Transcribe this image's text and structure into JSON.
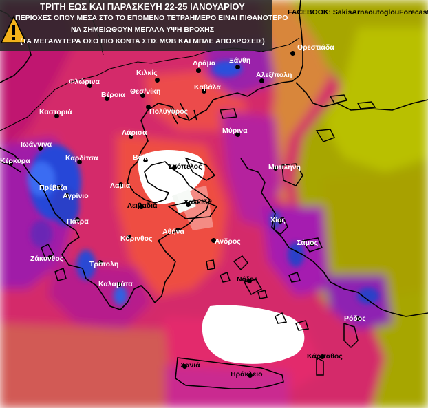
{
  "header": {
    "line1": "ΤΡΙΤΗ ΕΩΣ ΚΑΙ ΠΑΡΑΣΚΕΥΗ 22-25 ΙΑΝΟΥΑΡΙΟΥ",
    "line2": "ΠΕΡΙΟΧΕΣ ΟΠΟΥ ΜΕΣΑ ΣΤΟ ΤΟ ΕΠΟΜΕΝΟ ΤΕΤΡΑΗΜΕΡΟ  ΕΙΝΑΙ ΠΙΘΑΝΟΤΕΡΟ",
    "line3": "ΝΑ ΣΗΜΕΙΩΘΟΥΝ  ΜΕΓΑΛΑ ΥΨΗ ΒΡΟΧΗΣ",
    "line4": "(ΤΑ ΜΕΓΑΛΥΤΕΡΑ ΟΣΟ ΠΙΟ ΚΟΝΤΑ ΣΤΙΣ ΜΩΒ ΚΑΙ ΜΠΛΕ ΑΠΟΧΡΩΣΕΙΣ)"
  },
  "credit": "FACEBOOK: SakisArnaoutoglouForecasts",
  "icons": {
    "warning": "warning-triangle-icon"
  },
  "colors": {
    "header_bg": "#282828",
    "light_rain": "#a7a600",
    "moderate_rain": "#e04848",
    "heavy_rain": "#e4197a",
    "very_heavy_rain": "#a01aa8",
    "extreme_rain": "#1f3fd0",
    "dry_area": "#ffffff"
  },
  "cities": [
    {
      "name": "Ορεστιάδα"
    },
    {
      "name": "Δράμα"
    },
    {
      "name": "Ξάνθη"
    },
    {
      "name": "Κιλκίς"
    },
    {
      "name": "Φλώρινα"
    },
    {
      "name": "Βέροια"
    },
    {
      "name": "Θεσ/νίκη"
    },
    {
      "name": "Καβάλα"
    },
    {
      "name": "Αλεξ/πολη"
    },
    {
      "name": "Καστοριά"
    },
    {
      "name": "Πολύγυρος"
    },
    {
      "name": "Μύρινα"
    },
    {
      "name": "Λάρισα"
    },
    {
      "name": "Ιωάννινα"
    },
    {
      "name": "Κέρκυρα"
    },
    {
      "name": "Καρδίτσα"
    },
    {
      "name": "Βόλος"
    },
    {
      "name": "Σκόπελος"
    },
    {
      "name": "Μυτιλήνη"
    },
    {
      "name": "Πρέβεζα"
    },
    {
      "name": "Λαμία"
    },
    {
      "name": "Αγρίνιο"
    },
    {
      "name": "Λειβαδιά"
    },
    {
      "name": "Χαλκίδα"
    },
    {
      "name": "Χίος"
    },
    {
      "name": "Πάτρα"
    },
    {
      "name": "Αθήνα"
    },
    {
      "name": "Κόρινθος"
    },
    {
      "name": "Άνδρος"
    },
    {
      "name": "Σάμος"
    },
    {
      "name": "Ζάκυνθος"
    },
    {
      "name": "Τρίπολη"
    },
    {
      "name": "Νάξος"
    },
    {
      "name": "Καλαμάτα"
    },
    {
      "name": "Ρόδος"
    },
    {
      "name": "Κάρπαθος"
    },
    {
      "name": "Χανιά"
    },
    {
      "name": "Ηράκλειο"
    }
  ]
}
